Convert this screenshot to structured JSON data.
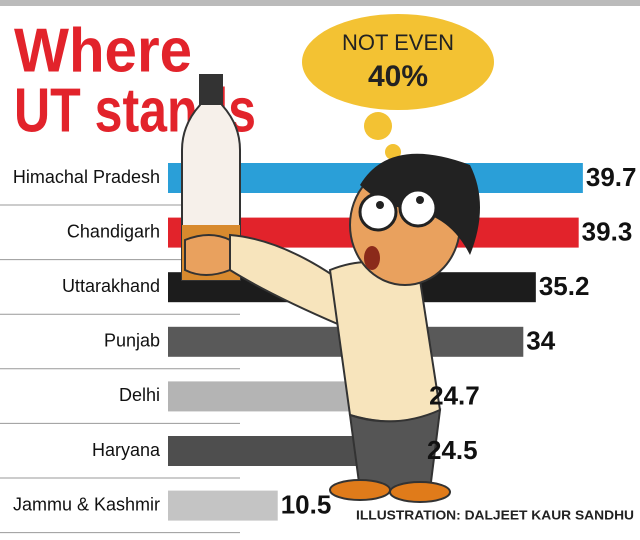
{
  "chart_data": {
    "type": "bar",
    "orientation": "horizontal",
    "title_lines": [
      "Where",
      "UT stands"
    ],
    "annotation_lines": [
      "NOT EVEN",
      "40%"
    ],
    "credit": "ILLUSTRATION: DALJEET KAUR SANDHU",
    "categories": [
      "Himachal Pradesh",
      "Chandigarh",
      "Uttarakhand",
      "Punjab",
      "Delhi",
      "Haryana",
      "Jammu & Kashmir"
    ],
    "values": [
      39.7,
      39.3,
      35.2,
      34,
      24.7,
      24.5,
      10.5
    ],
    "colors": [
      "#2a9fd8",
      "#e2232b",
      "#1c1c1c",
      "#595959",
      "#b4b4b4",
      "#4e4e4e",
      "#c4c4c4"
    ]
  }
}
